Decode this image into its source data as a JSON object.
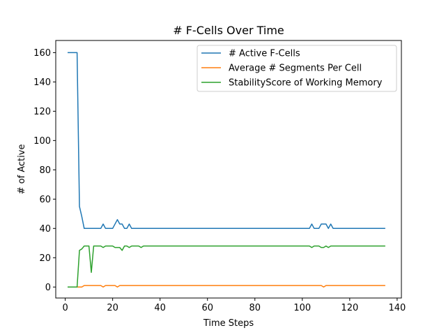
{
  "chart_data": {
    "type": "line",
    "title": "# F-Cells Over Time",
    "xlabel": "Time Steps",
    "ylabel": "# of Active",
    "xlim": [
      -4,
      141.8
    ],
    "ylim": [
      -7.5,
      168.3
    ],
    "xticks": [
      0,
      20,
      40,
      60,
      80,
      100,
      120,
      140
    ],
    "yticks": [
      0,
      20,
      40,
      60,
      80,
      100,
      120,
      140,
      160
    ],
    "grid": false,
    "legend_position": "top-right",
    "series": [
      {
        "name": "# Active F-Cells",
        "color": "#1f77b4",
        "points": [
          [
            1,
            160
          ],
          [
            5,
            160
          ],
          [
            6,
            55
          ],
          [
            7,
            48
          ],
          [
            8,
            40
          ],
          [
            15,
            40
          ],
          [
            16,
            43
          ],
          [
            17,
            40
          ],
          [
            20,
            40
          ],
          [
            22,
            46
          ],
          [
            23,
            43
          ],
          [
            24,
            43
          ],
          [
            25,
            40
          ],
          [
            26,
            40
          ],
          [
            27,
            43
          ],
          [
            28,
            40
          ],
          [
            103,
            40
          ],
          [
            104,
            43
          ],
          [
            105,
            40
          ],
          [
            107,
            40
          ],
          [
            108,
            43
          ],
          [
            110,
            43
          ],
          [
            111,
            40
          ],
          [
            112,
            43
          ],
          [
            113,
            40
          ],
          [
            135,
            40
          ]
        ]
      },
      {
        "name": "Average # Segments Per Cell",
        "color": "#ff7f0e",
        "points": [
          [
            1,
            0
          ],
          [
            7,
            0
          ],
          [
            8,
            1
          ],
          [
            15,
            1
          ],
          [
            16,
            0
          ],
          [
            17,
            1
          ],
          [
            21,
            1
          ],
          [
            22,
            0
          ],
          [
            23,
            1
          ],
          [
            108,
            1
          ],
          [
            109,
            0
          ],
          [
            110,
            1
          ],
          [
            135,
            1
          ]
        ]
      },
      {
        "name": "StabilityScore of Working Memory",
        "color": "#2ca02c",
        "points": [
          [
            1,
            0
          ],
          [
            5,
            0
          ],
          [
            6,
            25
          ],
          [
            7,
            26
          ],
          [
            8,
            28
          ],
          [
            10,
            28
          ],
          [
            11,
            10
          ],
          [
            12,
            28
          ],
          [
            15,
            28
          ],
          [
            16,
            27
          ],
          [
            17,
            28
          ],
          [
            20,
            28
          ],
          [
            21,
            27
          ],
          [
            23,
            27
          ],
          [
            24,
            25
          ],
          [
            25,
            28
          ],
          [
            26,
            28
          ],
          [
            27,
            27
          ],
          [
            28,
            28
          ],
          [
            31,
            28
          ],
          [
            32,
            27
          ],
          [
            33,
            28
          ],
          [
            103,
            28
          ],
          [
            104,
            27
          ],
          [
            105,
            28
          ],
          [
            107,
            28
          ],
          [
            108,
            27
          ],
          [
            109,
            27
          ],
          [
            110,
            28
          ],
          [
            111,
            27
          ],
          [
            112,
            28
          ],
          [
            135,
            28
          ]
        ]
      }
    ]
  }
}
